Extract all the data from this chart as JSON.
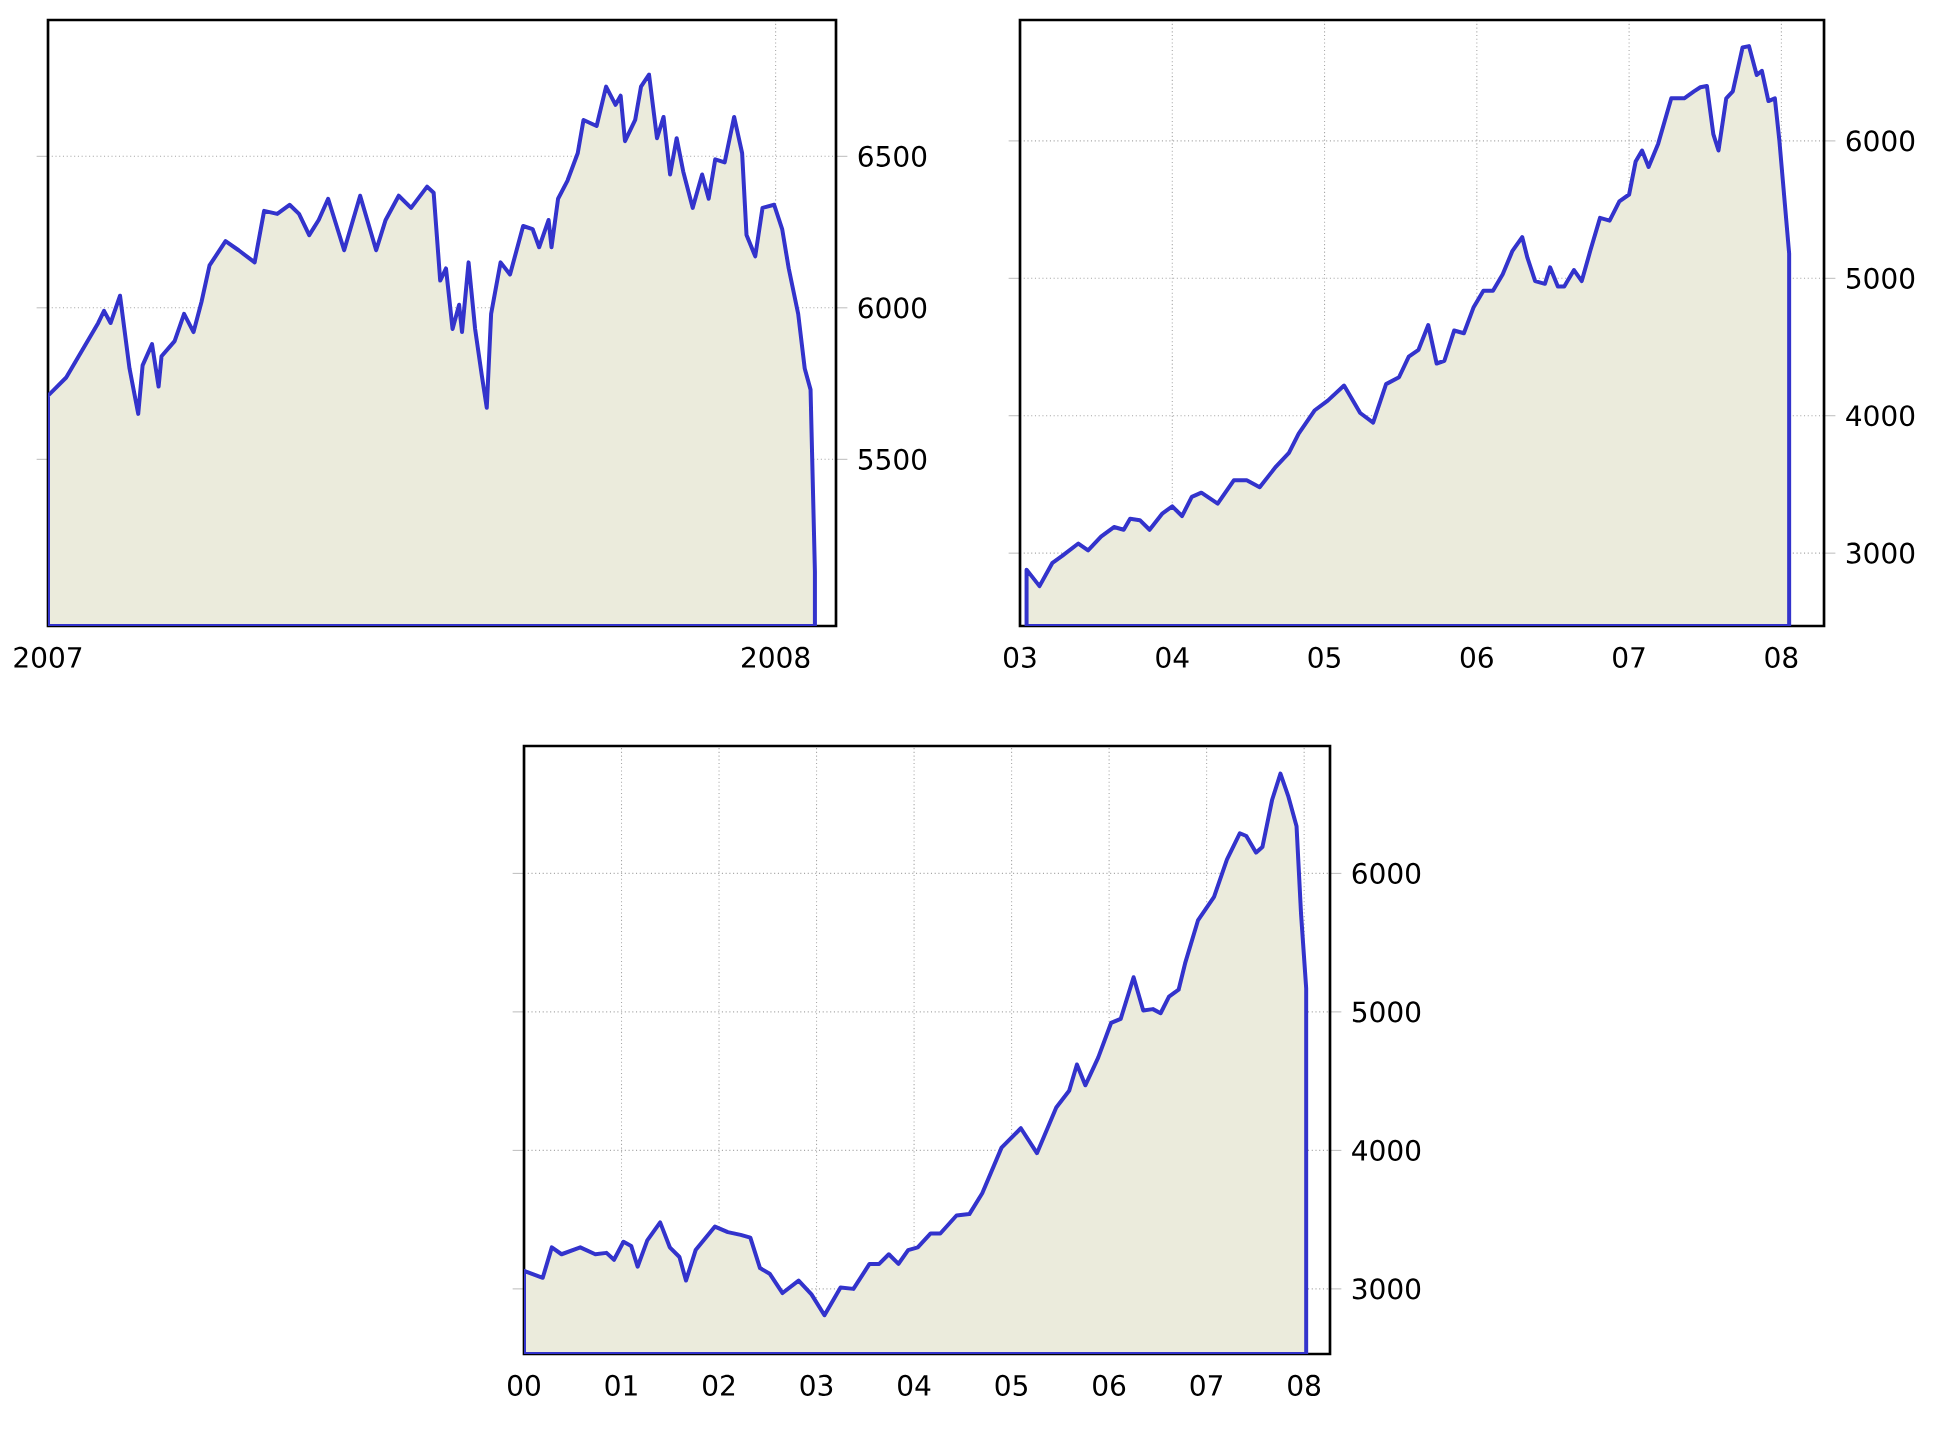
{
  "chart_data": [
    {
      "type": "area",
      "color": "#ebebdc",
      "grid": true,
      "xlim": [
        2007,
        2008.083
      ],
      "ylim": [
        4950,
        6950
      ],
      "xticks": [
        2007,
        2008
      ],
      "yticks": [
        5500,
        6000,
        6500
      ],
      "x": [
        2007.0,
        2007.025,
        2007.047,
        2007.069,
        2007.077,
        2007.086,
        2007.099,
        2007.112,
        2007.124,
        2007.13,
        2007.143,
        2007.152,
        2007.156,
        2007.174,
        2007.187,
        2007.2,
        2007.211,
        2007.222,
        2007.244,
        2007.262,
        2007.284,
        2007.297,
        2007.315,
        2007.332,
        2007.345,
        2007.359,
        2007.372,
        2007.385,
        2007.407,
        2007.429,
        2007.451,
        2007.464,
        2007.482,
        2007.499,
        2007.521,
        2007.53,
        2007.539,
        2007.547,
        2007.556,
        2007.565,
        2007.569,
        2007.578,
        2007.587,
        2007.596,
        2007.603,
        2007.609,
        2007.622,
        2007.635,
        2007.653,
        2007.666,
        2007.675,
        2007.688,
        2007.692,
        2007.701,
        2007.714,
        2007.728,
        2007.736,
        2007.754,
        2007.767,
        2007.78,
        2007.787,
        2007.793,
        2007.807,
        2007.815,
        2007.826,
        2007.837,
        2007.846,
        2007.855,
        2007.864,
        2007.873,
        2007.886,
        2007.899,
        2007.908,
        2007.917,
        2007.93,
        2007.943,
        2007.954,
        2007.96,
        2007.972,
        2007.982,
        2007.998,
        2008.009,
        2008.018,
        2008.031,
        2008.04,
        2008.048,
        2008.054
      ],
      "values": [
        5710,
        5770,
        5860,
        5950,
        5990,
        5950,
        6040,
        5800,
        5650,
        5810,
        5880,
        5740,
        5840,
        5890,
        5980,
        5920,
        6020,
        6140,
        6220,
        6190,
        6150,
        6320,
        6310,
        6340,
        6310,
        6240,
        6290,
        6360,
        6190,
        6370,
        6190,
        6290,
        6370,
        6330,
        6400,
        6380,
        6090,
        6130,
        5930,
        6010,
        5920,
        6150,
        5930,
        5780,
        5670,
        5980,
        6150,
        6110,
        6270,
        6260,
        6200,
        6290,
        6200,
        6360,
        6420,
        6510,
        6620,
        6600,
        6730,
        6670,
        6700,
        6550,
        6620,
        6730,
        6770,
        6560,
        6630,
        6440,
        6560,
        6450,
        6330,
        6440,
        6360,
        6490,
        6480,
        6630,
        6510,
        6240,
        6170,
        6330,
        6340,
        6260,
        6130,
        5980,
        5800,
        5730,
        5130
      ]
    },
    {
      "type": "area",
      "color": "#ebebdc",
      "grid": true,
      "xlim": [
        2003,
        2008.28
      ],
      "ylim": [
        2470,
        6880
      ],
      "xticks": [
        {
          "value": 2003,
          "label": "03"
        },
        {
          "value": 2004,
          "label": "04"
        },
        {
          "value": 2005,
          "label": "05"
        },
        {
          "value": 2006,
          "label": "06"
        },
        {
          "value": 2007,
          "label": "07"
        },
        {
          "value": 2008,
          "label": "08"
        }
      ],
      "yticks": [
        3000,
        4000,
        5000,
        6000
      ],
      "x": [
        2003.043,
        2003.128,
        2003.213,
        2003.277,
        2003.383,
        2003.447,
        2003.532,
        2003.617,
        2003.681,
        2003.723,
        2003.787,
        2003.851,
        2003.936,
        2004.0,
        2004.064,
        2004.128,
        2004.191,
        2004.298,
        2004.404,
        2004.489,
        2004.574,
        2004.681,
        2004.766,
        2004.83,
        2004.936,
        2005.021,
        2005.128,
        2005.234,
        2005.319,
        2005.404,
        2005.489,
        2005.553,
        2005.617,
        2005.681,
        2005.736,
        2005.787,
        2005.851,
        2005.915,
        2005.979,
        2006.043,
        2006.106,
        2006.17,
        2006.234,
        2006.298,
        2006.332,
        2006.383,
        2006.447,
        2006.481,
        2006.532,
        2006.574,
        2006.638,
        2006.689,
        2006.745,
        2006.809,
        2006.872,
        2006.936,
        2007.0,
        2007.043,
        2007.085,
        2007.128,
        2007.191,
        2007.277,
        2007.362,
        2007.426,
        2007.468,
        2007.511,
        2007.553,
        2007.587,
        2007.638,
        2007.681,
        2007.745,
        2007.787,
        2007.838,
        2007.872,
        2007.915,
        2007.957,
        2007.987,
        2008.051
      ],
      "values": [
        2880,
        2760,
        2930,
        2980,
        3070,
        3020,
        3120,
        3190,
        3170,
        3250,
        3240,
        3170,
        3290,
        3340,
        3270,
        3410,
        3440,
        3360,
        3530,
        3530,
        3480,
        3630,
        3730,
        3870,
        4040,
        4110,
        4220,
        4020,
        3950,
        4230,
        4280,
        4430,
        4480,
        4660,
        4380,
        4400,
        4620,
        4600,
        4790,
        4910,
        4910,
        5030,
        5200,
        5300,
        5150,
        4980,
        4960,
        5080,
        4940,
        4940,
        5060,
        4980,
        5200,
        5440,
        5420,
        5560,
        5610,
        5850,
        5930,
        5810,
        5980,
        6310,
        6310,
        6360,
        6390,
        6400,
        6050,
        5930,
        6310,
        6360,
        6680,
        6690,
        6480,
        6510,
        6290,
        6310,
        6000,
        5180
      ]
    },
    {
      "type": "area",
      "color": "#ebebdc",
      "grid": true,
      "xlim": [
        2000,
        2008.265
      ],
      "ylim": [
        2530,
        6920
      ],
      "xticks": [
        {
          "value": 2000,
          "label": "00"
        },
        {
          "value": 2001,
          "label": "01"
        },
        {
          "value": 2002,
          "label": "02"
        },
        {
          "value": 2003,
          "label": "03"
        },
        {
          "value": 2004,
          "label": "04"
        },
        {
          "value": 2005,
          "label": "05"
        },
        {
          "value": 2006,
          "label": "06"
        },
        {
          "value": 2007,
          "label": "07"
        },
        {
          "value": 2008,
          "label": "08"
        }
      ],
      "yticks": [
        3000,
        4000,
        5000,
        6000
      ],
      "x": [
        2000.0,
        2000.192,
        2000.285,
        2000.385,
        2000.577,
        2000.731,
        2000.846,
        2000.923,
        2001.02,
        2001.099,
        2001.165,
        2001.264,
        2001.396,
        2001.495,
        2001.594,
        2001.661,
        2001.76,
        2001.958,
        2002.09,
        2002.222,
        2002.321,
        2002.42,
        2002.519,
        2002.651,
        2002.816,
        2002.948,
        2003.081,
        2003.246,
        2003.378,
        2003.543,
        2003.642,
        2003.741,
        2003.84,
        2003.939,
        2004.038,
        2004.17,
        2004.269,
        2004.435,
        2004.567,
        2004.699,
        2004.897,
        2005.095,
        2005.26,
        2005.458,
        2005.59,
        2005.67,
        2005.756,
        2005.888,
        2006.02,
        2006.119,
        2006.251,
        2006.35,
        2006.449,
        2006.528,
        2006.614,
        2006.713,
        2006.779,
        2006.911,
        2007.076,
        2007.208,
        2007.341,
        2007.407,
        2007.506,
        2007.572,
        2007.671,
        2007.757,
        2007.836,
        2007.922,
        2007.968,
        2008.021
      ],
      "values": [
        3130,
        3080,
        3300,
        3250,
        3300,
        3250,
        3260,
        3210,
        3340,
        3310,
        3160,
        3350,
        3480,
        3300,
        3230,
        3060,
        3280,
        3450,
        3410,
        3390,
        3370,
        3150,
        3110,
        2970,
        3060,
        2960,
        2810,
        3010,
        3000,
        3180,
        3180,
        3250,
        3180,
        3280,
        3300,
        3400,
        3400,
        3530,
        3540,
        3690,
        4020,
        4160,
        3980,
        4310,
        4430,
        4620,
        4470,
        4670,
        4920,
        4950,
        5250,
        5010,
        5020,
        4990,
        5110,
        5160,
        5350,
        5660,
        5830,
        6100,
        6290,
        6270,
        6150,
        6190,
        6530,
        6720,
        6560,
        6340,
        5710,
        5170
      ]
    }
  ]
}
